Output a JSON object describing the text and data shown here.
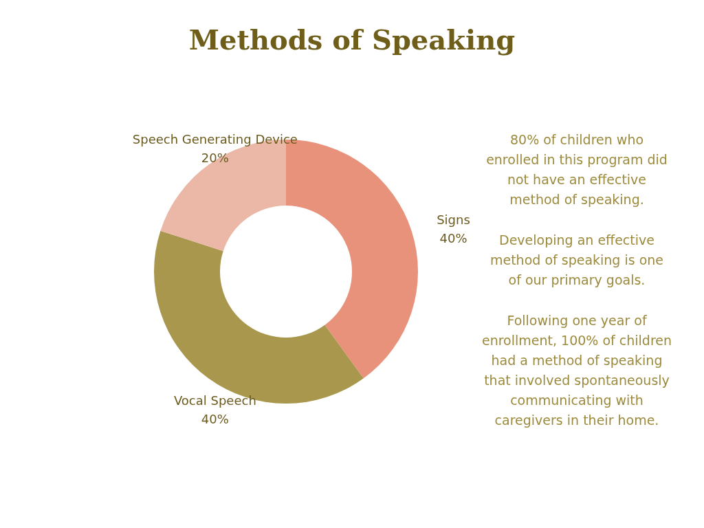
{
  "chart_data": {
    "type": "donut",
    "title": "Methods of Speaking",
    "categories": [
      "Signs",
      "Vocal Speech",
      "Speech Generating Device"
    ],
    "values": [
      40,
      40,
      20
    ],
    "colors": [
      "#e8927c",
      "#aa974e",
      "#ebb8a8"
    ],
    "value_labels": [
      "40%",
      "40%",
      "20%"
    ],
    "legend": false,
    "annotations": [
      "80% of children who\nenrolled in this program did\nnot have an effective\nmethod of speaking.",
      "Developing an effective\nmethod of speaking is one\nof our primary goals.",
      "Following one year of\nenrollment, 100% of children\nhad a method of speaking\nthat involved spontaneously\ncommunicating with\ncaregivers in their home."
    ]
  }
}
